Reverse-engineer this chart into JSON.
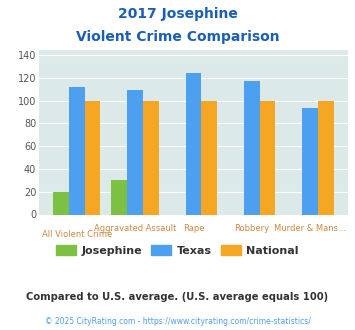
{
  "title_line1": "2017 Josephine",
  "title_line2": "Violent Crime Comparison",
  "categories_top": [
    "Aggravated Assault",
    "Rape",
    "Robbery",
    "Murder & Mans..."
  ],
  "categories_bot": [
    "All Violent Crime",
    "",
    "",
    ""
  ],
  "x_top_labels": [
    "Aggravated Assault",
    "Rape",
    "Robbery",
    "Murder & Mans..."
  ],
  "x_bot_labels": [
    "All Violent Crime",
    "",
    "",
    ""
  ],
  "josephine": [
    20,
    30,
    0,
    0,
    0
  ],
  "texas": [
    112,
    109,
    124,
    117,
    94
  ],
  "national": [
    100,
    100,
    100,
    100,
    100
  ],
  "color_josephine": "#7dc142",
  "color_texas": "#4d9fef",
  "color_national": "#f5a623",
  "ylim": [
    0,
    145
  ],
  "yticks": [
    0,
    20,
    40,
    60,
    80,
    100,
    120,
    140
  ],
  "background_color": "#dce9e9",
  "title_color": "#1a5fb4",
  "xtick_top_color": "#cc8844",
  "xtick_bot_color": "#cc8844",
  "footer_note": "Compared to U.S. average. (U.S. average equals 100)",
  "footer_copy": "© 2025 CityRating.com - https://www.cityrating.com/crime-statistics/",
  "legend_labels": [
    "Josephine",
    "Texas",
    "National"
  ]
}
